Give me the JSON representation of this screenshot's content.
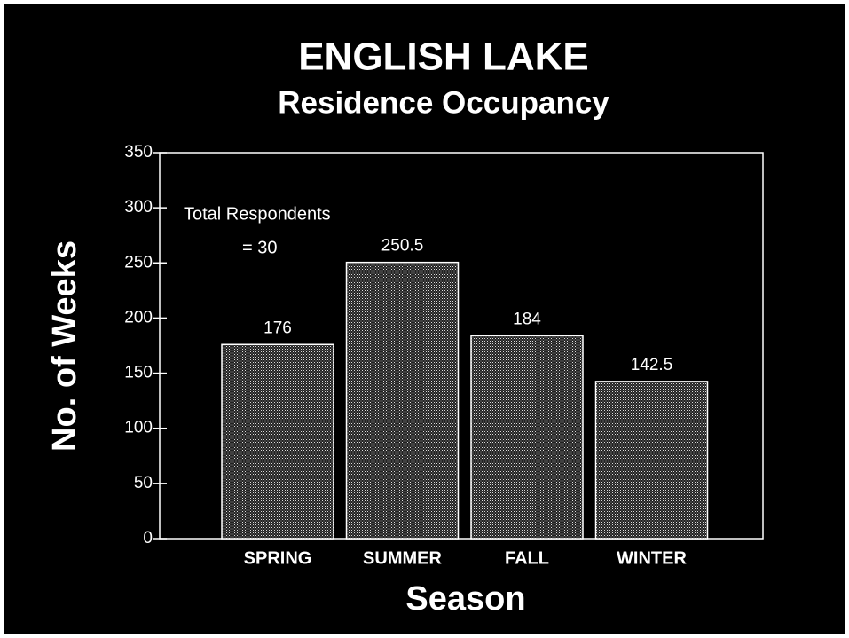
{
  "chart_data": {
    "type": "bar",
    "title": "ENGLISH LAKE",
    "subtitle": "Residence Occupancy",
    "x_label": "Season",
    "y_label": "No. of Weeks",
    "annotations": [
      "Total Respondents",
      "= 30"
    ],
    "categories": [
      "SPRING",
      "SUMMER",
      "FALL",
      "WINTER"
    ],
    "values": [
      176,
      250.5,
      184,
      142.5
    ],
    "color": "#ffffff",
    "ylim": [
      0,
      350
    ],
    "yticks": [
      0,
      50,
      100,
      150,
      200,
      250,
      300,
      350
    ],
    "grid": false
  }
}
